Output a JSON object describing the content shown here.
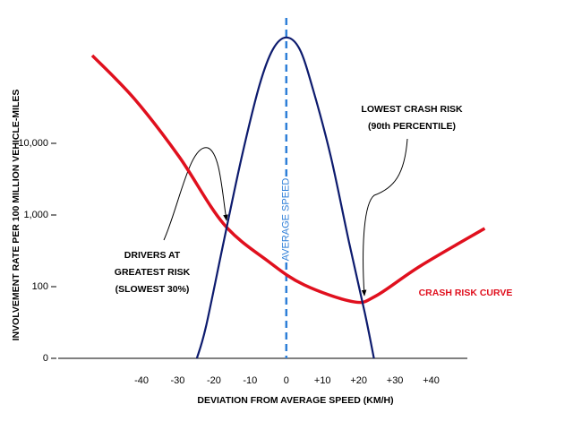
{
  "chart_data": {
    "type": "line",
    "xlabel": "DEVIATION FROM AVERAGE SPEED (KM/H)",
    "ylabel": "INVOLVEMENT RATE PER 100 MILLION VEHICLE-MILES",
    "xlim": [
      -63,
      50
    ],
    "xticks": [
      {
        "value": -40,
        "label": "-40"
      },
      {
        "value": -30,
        "label": "-30"
      },
      {
        "value": -20,
        "label": "-20"
      },
      {
        "value": -10,
        "label": "-10"
      },
      0,
      {
        "value": 10,
        "label": "+10"
      },
      {
        "value": 20,
        "label": "+20"
      },
      {
        "value": 30,
        "label": "+30"
      },
      {
        "value": 40,
        "label": "+40"
      }
    ],
    "ylim": [
      0,
      562000
    ],
    "yscale": "symlog",
    "yticks": [
      0,
      100,
      {
        "value": 1000,
        "label": "1,000"
      },
      {
        "value": 10000,
        "label": "10,000"
      }
    ],
    "vline": {
      "x": 0,
      "label": "AVERAGE SPEED",
      "color": "#2f7fd8"
    },
    "series": [
      {
        "name": "CRASH RISK CURVE",
        "color": "#e0101e",
        "x": [
          -53.6,
          -42,
          -29.6,
          -17.3,
          -4.9,
          4.9,
          18.5,
          24.7,
          37,
          54.8
        ],
        "values": [
          168000,
          42000,
          6500,
          750,
          224,
          106,
          79,
          87,
          194,
          650
        ]
      },
      {
        "color": "#0d1b6e",
        "x": [
          -24.7,
          -22.2,
          -17.3,
          -12.3,
          -7.4,
          -3.7,
          0,
          3.7,
          7.4,
          12.3,
          17.3,
          21.7,
          24.2
        ],
        "values": [
          0,
          44,
          422,
          6500,
          65000,
          205000,
          300000,
          205000,
          56000,
          6500,
          422,
          63,
          0
        ]
      }
    ],
    "annotations": [
      {
        "lines": [
          "DRIVERS AT",
          "GREATEST RISK",
          "(SLOWEST 30%)"
        ]
      },
      {
        "lines": [
          "LOWEST CRASH RISK",
          "(90th PERCENTILE)"
        ]
      }
    ]
  }
}
